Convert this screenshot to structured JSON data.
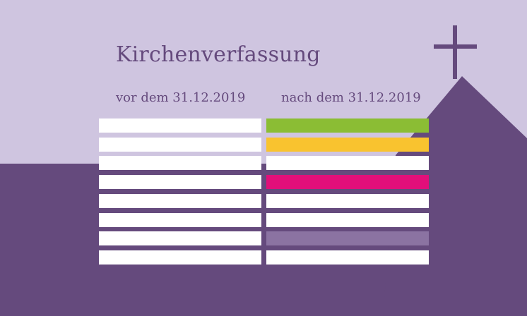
{
  "title": "Kirchenverfassung",
  "columns": {
    "before": "vor dem 31.12.2019",
    "after": "nach dem 31.12.2019"
  },
  "colors": {
    "sky": "#cfc5e0",
    "ground": "#654a7d",
    "white": "#ffffff",
    "text": "#654a7d"
  },
  "rows_before": [
    {
      "color": "#ffffff"
    },
    {
      "color": "#ffffff"
    },
    {
      "color": "#ffffff"
    },
    {
      "color": "#ffffff"
    },
    {
      "color": "#ffffff"
    },
    {
      "color": "#ffffff"
    },
    {
      "color": "#ffffff"
    },
    {
      "color": "#ffffff"
    }
  ],
  "rows_after": [
    {
      "color": "#8bbd34"
    },
    {
      "color": "#f9c32f"
    },
    {
      "color": "#ffffff"
    },
    {
      "color": "#e20f7a"
    },
    {
      "color": "#ffffff"
    },
    {
      "color": "#ffffff"
    },
    {
      "color": "#8b73a2"
    },
    {
      "color": "#ffffff"
    }
  ],
  "icons": {
    "cross": "cross-icon",
    "church": "church-silhouette"
  }
}
